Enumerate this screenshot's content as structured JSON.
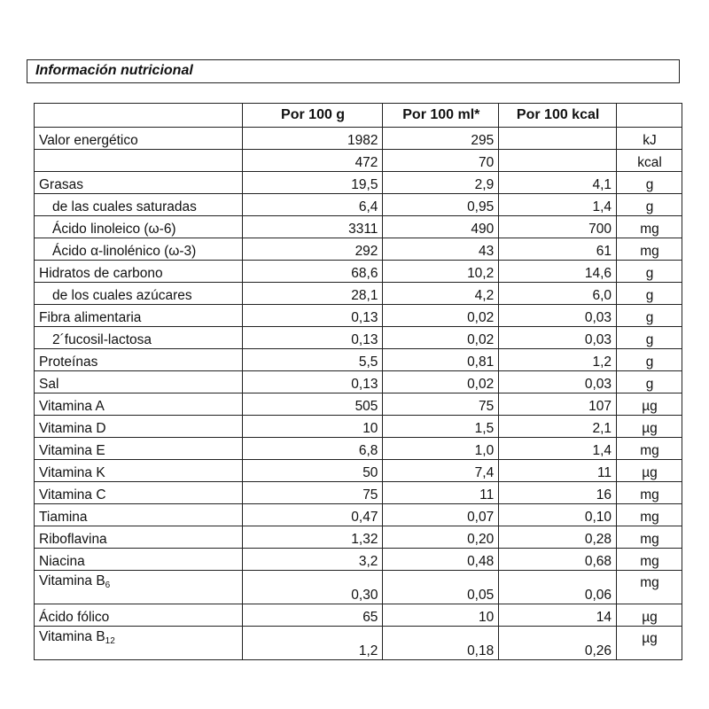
{
  "title": "Información nutricional",
  "headers": [
    "",
    "Por 100 g",
    "Por 100 ml*",
    "Por 100 kcal",
    ""
  ],
  "rows": [
    {
      "label": "Valor energético",
      "sub": "",
      "indent": false,
      "v1": "1982",
      "v2": "295",
      "v3": "",
      "unit": "kJ"
    },
    {
      "label": "",
      "sub": "",
      "indent": false,
      "v1": "472",
      "v2": "70",
      "v3": "",
      "unit": "kcal"
    },
    {
      "label": "Grasas",
      "sub": "",
      "indent": false,
      "v1": "19,5",
      "v2": "2,9",
      "v3": "4,1",
      "unit": "g"
    },
    {
      "label": "de las cuales saturadas",
      "sub": "",
      "indent": true,
      "v1": "6,4",
      "v2": "0,95",
      "v3": "1,4",
      "unit": "g"
    },
    {
      "label": "Ácido linoleico (ω-6)",
      "sub": "",
      "indent": true,
      "v1": "3311",
      "v2": "490",
      "v3": "700",
      "unit": "mg"
    },
    {
      "label": "Ácido α-linolénico (ω-3)",
      "sub": "",
      "indent": true,
      "v1": "292",
      "v2": "43",
      "v3": "61",
      "unit": "mg"
    },
    {
      "label": "Hidratos de carbono",
      "sub": "",
      "indent": false,
      "v1": "68,6",
      "v2": "10,2",
      "v3": "14,6",
      "unit": "g"
    },
    {
      "label": "de los cuales azúcares",
      "sub": "",
      "indent": true,
      "v1": "28,1",
      "v2": "4,2",
      "v3": "6,0",
      "unit": "g"
    },
    {
      "label": "Fibra alimentaria",
      "sub": "",
      "indent": false,
      "v1": "0,13",
      "v2": "0,02",
      "v3": "0,03",
      "unit": "g"
    },
    {
      "label": "2´fucosil-lactosa",
      "sub": "",
      "indent": true,
      "v1": "0,13",
      "v2": "0,02",
      "v3": "0,03",
      "unit": "g"
    },
    {
      "label": "Proteínas",
      "sub": "",
      "indent": false,
      "v1": "5,5",
      "v2": "0,81",
      "v3": "1,2",
      "unit": "g"
    },
    {
      "label": "Sal",
      "sub": "",
      "indent": false,
      "v1": "0,13",
      "v2": "0,02",
      "v3": "0,03",
      "unit": "g"
    },
    {
      "label": "Vitamina A",
      "sub": "",
      "indent": false,
      "v1": "505",
      "v2": "75",
      "v3": "107",
      "unit": "µg"
    },
    {
      "label": "Vitamina D",
      "sub": "",
      "indent": false,
      "v1": "10",
      "v2": "1,5",
      "v3": "2,1",
      "unit": "µg"
    },
    {
      "label": "Vitamina E",
      "sub": "",
      "indent": false,
      "v1": "6,8",
      "v2": "1,0",
      "v3": "1,4",
      "unit": "mg"
    },
    {
      "label": "Vitamina K",
      "sub": "",
      "indent": false,
      "v1": "50",
      "v2": "7,4",
      "v3": "11",
      "unit": "µg"
    },
    {
      "label": "Vitamina C",
      "sub": "",
      "indent": false,
      "v1": "75",
      "v2": "11",
      "v3": "16",
      "unit": "mg"
    },
    {
      "label": "Tiamina",
      "sub": "",
      "indent": false,
      "v1": "0,47",
      "v2": "0,07",
      "v3": "0,10",
      "unit": "mg"
    },
    {
      "label": "Riboflavina",
      "sub": "",
      "indent": false,
      "v1": "1,32",
      "v2": "0,20",
      "v3": "0,28",
      "unit": "mg"
    },
    {
      "label": "Niacina",
      "sub": "",
      "indent": false,
      "v1": "3,2",
      "v2": "0,48",
      "v3": "0,68",
      "unit": "mg"
    },
    {
      "label": "Vitamina B",
      "sub": "6",
      "indent": false,
      "v1": "0,30",
      "v2": "0,05",
      "v3": "0,06",
      "unit": "mg"
    },
    {
      "label": "Ácido fólico",
      "sub": "",
      "indent": false,
      "v1": "65",
      "v2": "10",
      "v3": "14",
      "unit": "µg"
    },
    {
      "label": "Vitamina B",
      "sub": "12",
      "indent": false,
      "v1": "1,2",
      "v2": "0,18",
      "v3": "0,26",
      "unit": "µg"
    }
  ]
}
